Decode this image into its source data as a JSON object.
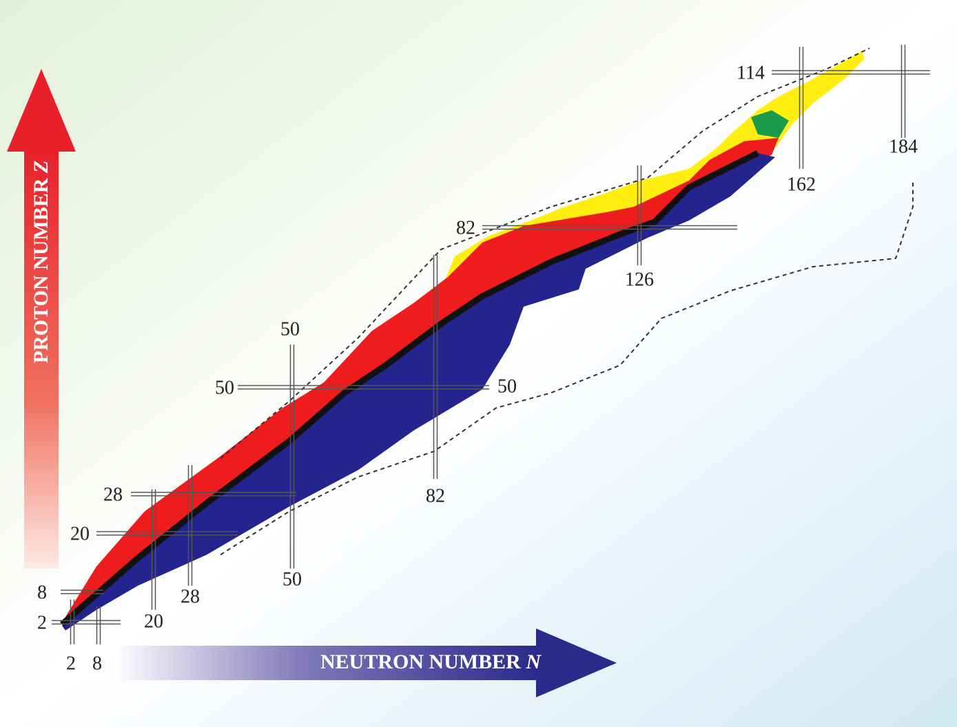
{
  "axes": {
    "y_label": "PROTON NUMBER",
    "y_symbol": "Z",
    "x_label": "NEUTRON NUMBER",
    "x_symbol": "N"
  },
  "proton_magic_left": [
    "2",
    "8",
    "20",
    "28",
    "50",
    "82",
    "114"
  ],
  "proton_magic_right": [
    "50"
  ],
  "neutron_magic_bottom": [
    "2",
    "8",
    "20",
    "28",
    "50",
    "82",
    "126",
    "162",
    "184"
  ],
  "neutron_magic_top": [
    "50"
  ]
}
